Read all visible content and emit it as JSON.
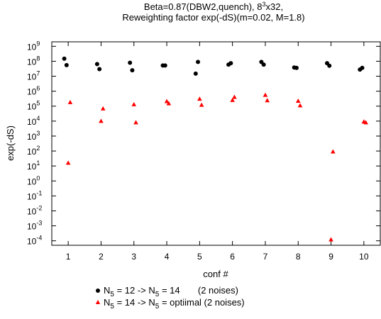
{
  "chart_data": {
    "type": "scatter",
    "title_line1": "Beta=0.87(DBW2,quench), 8",
    "title_line1_sup": "3",
    "title_line1_tail": "x32,",
    "title_line2": "Reweighting factor exp(-dS)(m=0.02, M=1.8)",
    "xlabel": "conf #",
    "ylabel": "exp(-dS)",
    "log_y": true,
    "xlim": [
      0.5,
      10.5
    ],
    "ylim_log10": [
      -4.3,
      9.3
    ],
    "x_ticks": [
      "1",
      "2",
      "3",
      "4",
      "5",
      "6",
      "7",
      "8",
      "9",
      "10"
    ],
    "y_ticks": [
      {
        "base": "10",
        "exp": "9"
      },
      {
        "base": "10",
        "exp": "8"
      },
      {
        "base": "10",
        "exp": "7"
      },
      {
        "base": "10",
        "exp": "6"
      },
      {
        "base": "10",
        "exp": "5"
      },
      {
        "base": "10",
        "exp": "4"
      },
      {
        "base": "10",
        "exp": "3"
      },
      {
        "base": "10",
        "exp": "2"
      },
      {
        "base": "10",
        "exp": "1"
      },
      {
        "base": "10",
        "exp": "0"
      },
      {
        "base": "10",
        "exp": "-1"
      },
      {
        "base": "10",
        "exp": "-2"
      },
      {
        "base": "10",
        "exp": "-3"
      },
      {
        "base": "10",
        "exp": "-4"
      }
    ],
    "grid": false,
    "legend_position": "bottom-center",
    "series": [
      {
        "legend_pre": "N",
        "legend_sub1": "5",
        "legend_mid": " = 12 -> N",
        "legend_sub2": "5",
        "legend_post": " = 14       (2 noises)",
        "color": "#000000",
        "marker": "circle",
        "points": [
          [
            0.88,
            150000000.0
          ],
          [
            0.95,
            55000000.0
          ],
          [
            1.88,
            65000000.0
          ],
          [
            1.95,
            30000000.0
          ],
          [
            2.88,
            80000000.0
          ],
          [
            2.95,
            25000000.0
          ],
          [
            3.88,
            52000000.0
          ],
          [
            3.95,
            52000000.0
          ],
          [
            4.88,
            15000000.0
          ],
          [
            4.95,
            90000000.0
          ],
          [
            5.88,
            60000000.0
          ],
          [
            5.95,
            75000000.0
          ],
          [
            6.88,
            90000000.0
          ],
          [
            6.95,
            60000000.0
          ],
          [
            7.88,
            38000000.0
          ],
          [
            7.95,
            36000000.0
          ],
          [
            8.88,
            75000000.0
          ],
          [
            8.95,
            50000000.0
          ],
          [
            9.88,
            28000000.0
          ],
          [
            9.95,
            36000000.0
          ]
        ]
      },
      {
        "legend_pre": "N",
        "legend_sub1": "5",
        "legend_mid": " = 14 -> N",
        "legend_sub2": "5",
        "legend_post": " = optiimal (2 noises)",
        "color": "#ff0000",
        "marker": "triangle",
        "points": [
          [
            1.0,
            16
          ],
          [
            1.06,
            180000.0
          ],
          [
            2.0,
            10000.0
          ],
          [
            2.06,
            68000.0
          ],
          [
            3.0,
            130000.0
          ],
          [
            3.06,
            8000.0
          ],
          [
            4.0,
            210000.0
          ],
          [
            4.06,
            150000.0
          ],
          [
            5.0,
            300000.0
          ],
          [
            5.06,
            120000.0
          ],
          [
            6.0,
            250000.0
          ],
          [
            6.06,
            400000.0
          ],
          [
            7.0,
            550000.0
          ],
          [
            7.06,
            240000.0
          ],
          [
            8.0,
            220000.0
          ],
          [
            8.06,
            110000.0
          ],
          [
            9.0,
            0.00012
          ],
          [
            9.06,
            90
          ],
          [
            10.0,
            9000.0
          ],
          [
            10.06,
            8000.0
          ]
        ]
      }
    ]
  }
}
